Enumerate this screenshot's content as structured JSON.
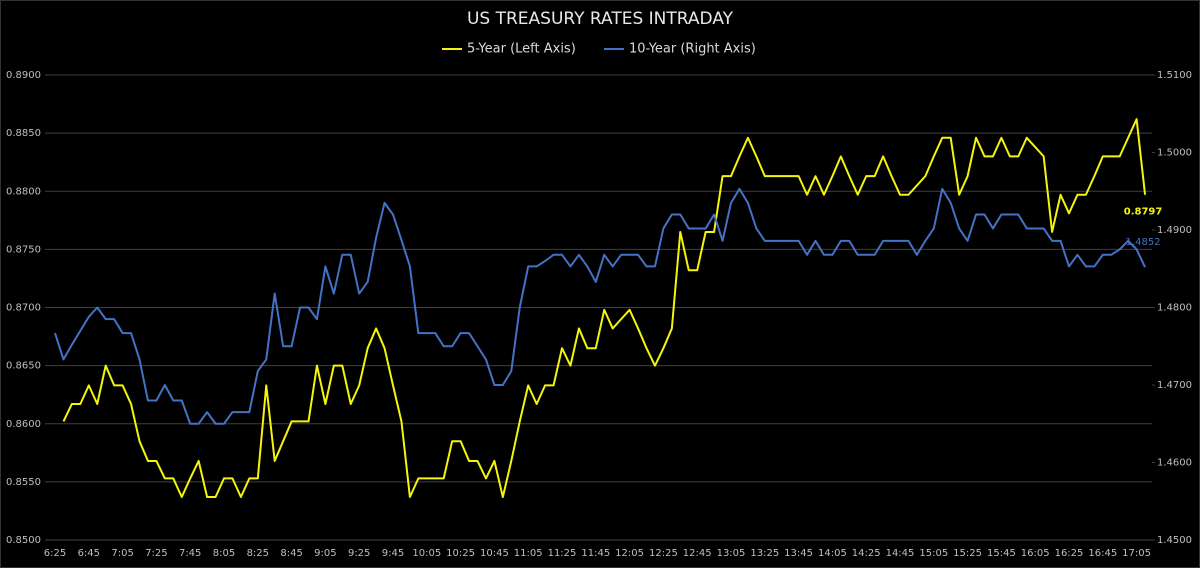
{
  "chart_data": {
    "type": "line",
    "title": "US TREASURY RATES INTRADAY",
    "categories": [
      "6:25",
      null,
      null,
      null,
      "6:45",
      null,
      null,
      null,
      "7:05",
      null,
      null,
      null,
      "7:25",
      null,
      null,
      null,
      "7:45",
      null,
      null,
      null,
      "8:05",
      null,
      null,
      null,
      "8:25",
      null,
      null,
      null,
      "8:45",
      null,
      null,
      null,
      "9:05",
      null,
      null,
      null,
      "9:25",
      null,
      null,
      null,
      "9:45",
      null,
      null,
      null,
      "10:05",
      null,
      null,
      null,
      "10:25",
      null,
      null,
      null,
      "10:45",
      null,
      null,
      null,
      "11:05",
      null,
      null,
      null,
      "11:25",
      null,
      null,
      null,
      "11:45",
      null,
      null,
      null,
      "12:05",
      null,
      null,
      null,
      "12:25",
      null,
      null,
      null,
      "12:45",
      null,
      null,
      null,
      "13:05",
      null,
      null,
      null,
      "13:25",
      null,
      null,
      null,
      "13:45",
      null,
      null,
      null,
      "14:05",
      null,
      null,
      null,
      "14:25",
      null,
      null,
      null,
      "14:45",
      null,
      null,
      null,
      "15:05",
      null,
      null,
      null,
      "15:25",
      null,
      null,
      null,
      "15:45",
      null,
      null,
      null,
      "16:05",
      null,
      null,
      null,
      "16:25",
      null,
      null,
      null,
      "16:45",
      null,
      null,
      null,
      "17:05",
      null
    ],
    "series": [
      {
        "name": "5-Year (Left Axis)",
        "color": "#f5f50a",
        "axis": "y",
        "end_label": true,
        "values": [
          null,
          0.8602,
          0.8617,
          0.8617,
          0.8633,
          0.8617,
          0.865,
          0.8633,
          0.8633,
          0.8617,
          0.8585,
          0.8568,
          0.8568,
          0.8553,
          0.8553,
          0.8537,
          0.8553,
          0.8568,
          0.8537,
          0.8537,
          0.8553,
          0.8553,
          0.8537,
          0.8553,
          0.8553,
          0.8633,
          0.8568,
          0.8585,
          0.8602,
          0.8602,
          0.8602,
          0.865,
          0.8617,
          0.865,
          0.865,
          0.8617,
          0.8633,
          0.8665,
          0.8682,
          0.8665,
          0.8633,
          0.8602,
          0.8537,
          0.8553,
          0.8553,
          0.8553,
          0.8553,
          0.8585,
          0.8585,
          0.8568,
          0.8568,
          0.8553,
          0.8568,
          0.8537,
          0.8568,
          0.8602,
          0.8633,
          0.8617,
          0.8633,
          0.8633,
          0.8665,
          0.865,
          0.8682,
          0.8665,
          0.8665,
          0.8698,
          0.8682,
          0.869,
          0.8698,
          0.8682,
          0.8665,
          0.865,
          0.8665,
          0.8682,
          0.8765,
          0.8732,
          0.8732,
          0.8765,
          0.8765,
          0.8813,
          0.8813,
          0.883,
          0.8846,
          0.883,
          0.8813,
          0.8813,
          0.8813,
          0.8813,
          0.8813,
          0.8797,
          0.8813,
          0.8797,
          0.8813,
          0.883,
          0.8813,
          0.8797,
          0.8813,
          0.8813,
          0.883,
          0.8813,
          0.8797,
          0.8797,
          0.8805,
          0.8813,
          0.883,
          0.8846,
          0.8846,
          0.8797,
          0.8813,
          0.8846,
          0.883,
          0.883,
          0.8846,
          0.883,
          0.883,
          0.8846,
          0.8838,
          0.883,
          0.8765,
          0.8797,
          0.8781,
          0.8797,
          0.8797,
          0.8813,
          0.883,
          0.883,
          0.883,
          0.8846,
          0.8862,
          0.8797
        ]
      },
      {
        "name": "10-Year (Right Axis)",
        "color": "#4472c4",
        "axis": "y2",
        "end_label": true,
        "values": [
          1.4767,
          1.4733,
          1.4752,
          1.477,
          1.4788,
          1.48,
          1.4785,
          1.4785,
          1.4767,
          1.4767,
          1.4733,
          1.468,
          1.468,
          1.47,
          1.468,
          1.468,
          1.465,
          1.465,
          1.4665,
          1.465,
          1.465,
          1.4665,
          1.4665,
          1.4665,
          1.4718,
          1.4733,
          1.4818,
          1.475,
          1.475,
          1.48,
          1.48,
          1.4785,
          1.4853,
          1.4818,
          1.4868,
          1.4868,
          1.4818,
          1.4833,
          1.489,
          1.4935,
          1.492,
          1.4887,
          1.4853,
          1.4767,
          1.4767,
          1.4767,
          1.475,
          1.475,
          1.4767,
          1.4767,
          1.475,
          1.4733,
          1.47,
          1.47,
          1.4718,
          1.48,
          1.4853,
          1.4853,
          1.486,
          1.4868,
          1.4868,
          1.4853,
          1.4868,
          1.4853,
          1.4833,
          1.4868,
          1.4853,
          1.4868,
          1.4868,
          1.4868,
          1.4853,
          1.4853,
          1.4902,
          1.492,
          1.492,
          1.4902,
          1.4902,
          1.4902,
          1.492,
          1.4886,
          1.4935,
          1.4953,
          1.4935,
          1.4902,
          1.4886,
          1.4886,
          1.4886,
          1.4886,
          1.4886,
          1.4868,
          1.4886,
          1.4868,
          1.4868,
          1.4886,
          1.4886,
          1.4868,
          1.4868,
          1.4868,
          1.4886,
          1.4886,
          1.4886,
          1.4886,
          1.4868,
          1.4886,
          1.4902,
          1.4953,
          1.4935,
          1.4902,
          1.4886,
          1.492,
          1.492,
          1.4902,
          1.492,
          1.492,
          1.492,
          1.4902,
          1.4902,
          1.4902,
          1.4886,
          1.4886,
          1.4853,
          1.4868,
          1.4853,
          1.4853,
          1.4868,
          1.4868,
          1.4875,
          1.4886,
          1.4875,
          1.4852
        ]
      }
    ],
    "ylim": [
      0.85,
      0.89
    ],
    "yticks": [
      {
        "value": 0.85,
        "label": "0.8500"
      },
      {
        "value": 0.855,
        "label": "0.8550"
      },
      {
        "value": 0.86,
        "label": "0.8600"
      },
      {
        "value": 0.865,
        "label": "0.8650"
      },
      {
        "value": 0.87,
        "label": "0.8700"
      },
      {
        "value": 0.875,
        "label": "0.8750"
      },
      {
        "value": 0.88,
        "label": "0.8800"
      },
      {
        "value": 0.885,
        "label": "0.8850"
      },
      {
        "value": 0.89,
        "label": "0.8900"
      }
    ],
    "y2lim": [
      1.45,
      1.51
    ],
    "y2ticks": [
      {
        "value": 1.45,
        "label": "1.4500"
      },
      {
        "value": 1.46,
        "label": "1.4600"
      },
      {
        "value": 1.47,
        "label": "1.4700"
      },
      {
        "value": 1.48,
        "label": "1.4800"
      },
      {
        "value": 1.49,
        "label": "1.4900"
      },
      {
        "value": 1.5,
        "label": "1.5000"
      },
      {
        "value": 1.51,
        "label": "1.5100"
      }
    ],
    "grid": true,
    "legend": "top"
  }
}
